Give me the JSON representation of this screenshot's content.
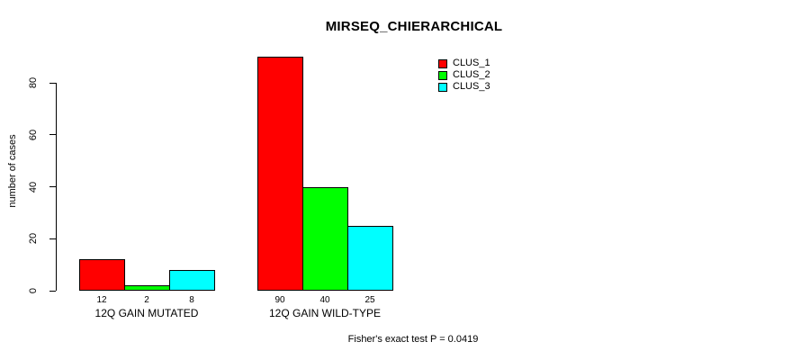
{
  "chart_data": {
    "type": "bar",
    "title": "MIRSEQ_CHIERARCHICAL",
    "xlabel": "",
    "ylabel": "number of cases",
    "categories": [
      "12Q GAIN MUTATED",
      "12Q GAIN WILD-TYPE"
    ],
    "series": [
      {
        "name": "CLUS_1",
        "color": "#FF0000",
        "values": [
          12,
          90
        ]
      },
      {
        "name": "CLUS_2",
        "color": "#00FF00",
        "values": [
          2,
          40
        ]
      },
      {
        "name": "CLUS_3",
        "color": "#00FFFF",
        "values": [
          8,
          25
        ]
      }
    ],
    "yticks": [
      0,
      20,
      40,
      60,
      80
    ],
    "ylim": [
      0,
      90
    ],
    "grid": false,
    "legend_position": "top-right",
    "bar_border_color": "#000000",
    "annotation": "Fisher's exact test P = 0.0419"
  }
}
